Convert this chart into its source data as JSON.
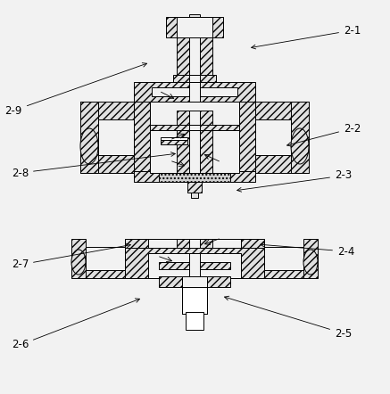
{
  "bg_color": "#f2f2f2",
  "line_color": "#000000",
  "fig_width": 4.37,
  "fig_height": 4.42,
  "hatch_fc": "#e0e0e0",
  "white_fc": "#ffffff",
  "label_fontsize": 8.5,
  "lw": 0.7,
  "annotations": {
    "2-1": {
      "txt": [
        385,
        408
      ],
      "arr": [
        278,
        388
      ]
    },
    "2-2": {
      "txt": [
        385,
        298
      ],
      "arr": [
        318,
        278
      ]
    },
    "2-3": {
      "txt": [
        375,
        245
      ],
      "arr": [
        262,
        228
      ]
    },
    "2-4": {
      "txt": [
        378,
        160
      ],
      "arr": [
        288,
        168
      ]
    },
    "2-5": {
      "txt": [
        375,
        68
      ],
      "arr": [
        248,
        110
      ]
    },
    "2-6": {
      "txt": [
        32,
        55
      ],
      "arr": [
        160,
        108
      ]
    },
    "2-7": {
      "txt": [
        32,
        145
      ],
      "arr": [
        150,
        168
      ]
    },
    "2-8": {
      "txt": [
        32,
        248
      ],
      "arr": [
        200,
        270
      ]
    },
    "2-9": {
      "txt": [
        25,
        318
      ],
      "arr": [
        168,
        372
      ]
    }
  }
}
